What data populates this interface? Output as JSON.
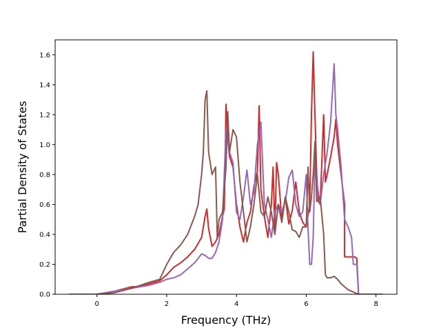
{
  "chart_data": {
    "type": "line",
    "title": "",
    "xlabel": "Frequency (THz)",
    "ylabel": "Partial Density of States",
    "xlim": [
      -1.2,
      8.6
    ],
    "ylim": [
      0.0,
      1.7
    ],
    "xticks": [
      0,
      2,
      4,
      6,
      8
    ],
    "yticks": [
      0.0,
      0.2,
      0.4,
      0.6,
      0.8,
      1.0,
      1.2,
      1.4,
      1.6
    ],
    "xtick_labels": [
      "0",
      "2",
      "4",
      "6",
      "8"
    ],
    "ytick_labels": [
      "0.0",
      "0.2",
      "0.4",
      "0.6",
      "0.8",
      "1.0",
      "1.2",
      "1.4",
      "1.6"
    ],
    "grid": false,
    "legend": "none",
    "series": [
      {
        "color": "#d62728",
        "x": [
          -0.8,
          0.0,
          0.5,
          1.0,
          1.1,
          1.5,
          1.8,
          2.0,
          2.2,
          2.4,
          2.6,
          2.8,
          3.0,
          3.1,
          3.15,
          3.2,
          3.3,
          3.4,
          3.5,
          3.6,
          3.65,
          3.7,
          3.75,
          3.8,
          3.9,
          4.0,
          4.1,
          4.2,
          4.3,
          4.4,
          4.5,
          4.6,
          4.65,
          4.7,
          4.8,
          4.9,
          5.0,
          5.05,
          5.1,
          5.15,
          5.2,
          5.3,
          5.4,
          5.5,
          5.6,
          5.7,
          5.8,
          5.9,
          6.0,
          6.1,
          6.15,
          6.2,
          6.25,
          6.3,
          6.35,
          6.4,
          6.5,
          6.55,
          6.6,
          6.7,
          6.8,
          6.85,
          6.9,
          7.0,
          7.1,
          7.1,
          7.3,
          7.4,
          7.45,
          7.5,
          8.2
        ],
        "y": [
          0.0,
          0.0,
          0.02,
          0.05,
          0.05,
          0.07,
          0.09,
          0.13,
          0.18,
          0.21,
          0.25,
          0.3,
          0.38,
          0.52,
          0.57,
          0.44,
          0.32,
          0.35,
          0.4,
          0.52,
          0.57,
          1.27,
          1.05,
          0.92,
          0.85,
          0.6,
          0.45,
          0.35,
          0.48,
          0.55,
          0.72,
          0.82,
          1.26,
          0.7,
          0.52,
          0.38,
          0.6,
          0.85,
          0.42,
          0.88,
          0.8,
          0.5,
          0.65,
          0.47,
          0.56,
          0.75,
          0.55,
          0.48,
          0.45,
          0.6,
          1.2,
          1.62,
          1.2,
          0.8,
          0.62,
          0.6,
          1.2,
          0.75,
          0.8,
          0.92,
          1.05,
          1.17,
          1.0,
          0.8,
          0.6,
          0.25,
          0.25,
          0.25,
          0.24,
          0.0,
          0.0
        ]
      },
      {
        "color": "#9467bd",
        "x": [
          -0.8,
          0.0,
          0.5,
          1.0,
          1.5,
          1.8,
          2.0,
          2.2,
          2.4,
          2.6,
          2.8,
          3.0,
          3.1,
          3.2,
          3.3,
          3.4,
          3.5,
          3.6,
          3.7,
          3.8,
          3.9,
          4.0,
          4.1,
          4.2,
          4.3,
          4.4,
          4.5,
          4.6,
          4.7,
          4.8,
          4.9,
          5.0,
          5.1,
          5.2,
          5.3,
          5.4,
          5.5,
          5.6,
          5.7,
          5.8,
          5.9,
          6.0,
          6.05,
          6.1,
          6.15,
          6.2,
          6.25,
          6.3,
          6.4,
          6.5,
          6.6,
          6.7,
          6.8,
          6.85,
          6.9,
          7.0,
          7.1,
          7.2,
          7.3,
          7.35,
          7.45,
          7.5,
          8.2
        ],
        "y": [
          0.0,
          0.0,
          0.02,
          0.04,
          0.06,
          0.08,
          0.1,
          0.11,
          0.13,
          0.17,
          0.21,
          0.27,
          0.26,
          0.24,
          0.24,
          0.28,
          0.35,
          0.5,
          1.1,
          0.95,
          0.88,
          0.55,
          0.5,
          0.65,
          0.83,
          0.6,
          0.68,
          1.0,
          1.15,
          0.6,
          0.5,
          0.38,
          0.55,
          0.6,
          0.55,
          0.62,
          0.78,
          0.83,
          0.6,
          0.52,
          0.55,
          0.8,
          0.45,
          0.2,
          0.2,
          0.38,
          0.93,
          0.75,
          0.6,
          0.8,
          0.95,
          1.15,
          1.54,
          1.2,
          1.1,
          0.85,
          0.5,
          0.45,
          0.38,
          0.2,
          0.2,
          0.0,
          0.0
        ]
      },
      {
        "color": "#8c564b",
        "x": [
          -0.8,
          0.0,
          0.5,
          1.0,
          1.5,
          1.8,
          1.9,
          2.0,
          2.2,
          2.4,
          2.6,
          2.8,
          2.9,
          3.0,
          3.05,
          3.1,
          3.15,
          3.2,
          3.3,
          3.4,
          3.45,
          3.5,
          3.6,
          3.7,
          3.75,
          3.8,
          3.9,
          4.0,
          4.1,
          4.2,
          4.3,
          4.4,
          4.5,
          4.6,
          4.7,
          4.8,
          4.9,
          5.0,
          5.1,
          5.2,
          5.3,
          5.4,
          5.5,
          5.6,
          5.7,
          5.8,
          5.9,
          6.0,
          6.05,
          6.1,
          6.15,
          6.2,
          6.25,
          6.3,
          6.4,
          6.5,
          6.55,
          6.6,
          6.7,
          6.8,
          6.9,
          7.0,
          7.2,
          7.4,
          7.5,
          8.2
        ],
        "y": [
          0.0,
          0.0,
          0.01,
          0.04,
          0.08,
          0.1,
          0.15,
          0.2,
          0.28,
          0.33,
          0.4,
          0.52,
          0.6,
          0.8,
          0.95,
          1.3,
          1.36,
          0.95,
          0.8,
          0.85,
          0.37,
          0.5,
          0.55,
          0.85,
          1.22,
          0.95,
          1.1,
          1.05,
          0.75,
          0.55,
          0.35,
          0.45,
          0.6,
          0.8,
          0.55,
          0.52,
          0.65,
          0.55,
          0.4,
          0.6,
          0.48,
          0.65,
          0.55,
          0.43,
          0.42,
          0.38,
          0.45,
          0.45,
          0.85,
          0.55,
          0.65,
          0.8,
          1.02,
          0.62,
          0.65,
          0.4,
          0.13,
          0.11,
          0.11,
          0.12,
          0.1,
          0.07,
          0.03,
          0.01,
          0.0,
          0.0
        ]
      }
    ]
  }
}
